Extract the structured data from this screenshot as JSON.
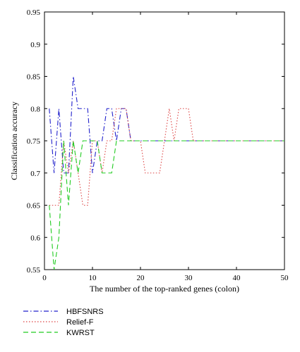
{
  "chart_data": {
    "type": "line",
    "xlabel": "The number of the top-ranked genes (colon)",
    "ylabel": "Classification accuracy",
    "xlim": [
      0,
      50
    ],
    "ylim": [
      0.55,
      0.95
    ],
    "x_ticks": [
      0,
      10,
      20,
      30,
      40,
      50
    ],
    "y_ticks": [
      0.55,
      0.6,
      0.65,
      0.7,
      0.75,
      0.8,
      0.85,
      0.9,
      0.95
    ],
    "grid": false,
    "legend_position": "below",
    "series": [
      {
        "name": "HBFSNRS",
        "color": "#2222cc",
        "style": "dash-dot",
        "x": [
          1,
          2,
          3,
          4,
          5,
          6,
          7,
          8,
          9,
          10,
          11,
          12,
          13,
          14,
          15,
          16,
          17,
          18,
          19,
          20,
          21,
          22,
          23,
          24,
          25,
          26,
          27,
          28,
          29,
          30,
          31,
          32,
          33,
          34,
          35,
          36,
          37,
          38,
          39,
          40,
          41,
          42,
          43,
          44,
          45,
          46,
          47,
          48,
          49,
          50
        ],
        "y": [
          0.8,
          0.7,
          0.8,
          0.7,
          0.7,
          0.85,
          0.8,
          0.8,
          0.8,
          0.7,
          0.75,
          0.75,
          0.8,
          0.8,
          0.75,
          0.8,
          0.8,
          0.75,
          0.75,
          0.75,
          0.75,
          0.75,
          0.75,
          0.75,
          0.75,
          0.75,
          0.75,
          0.75,
          0.75,
          0.75,
          0.75,
          0.75,
          0.75,
          0.75,
          0.75,
          0.75,
          0.75,
          0.75,
          0.75,
          0.75,
          0.75,
          0.75,
          0.75,
          0.75,
          0.75,
          0.75,
          0.75,
          0.75,
          0.75,
          0.75
        ]
      },
      {
        "name": "Relief-F",
        "color": "#dd4444",
        "style": "dotted",
        "x": [
          1,
          2,
          3,
          4,
          5,
          6,
          7,
          8,
          9,
          10,
          11,
          12,
          13,
          14,
          15,
          16,
          17,
          18,
          19,
          20,
          21,
          22,
          23,
          24,
          25,
          26,
          27,
          28,
          29,
          30,
          31,
          32,
          33,
          34,
          35,
          36,
          37,
          38,
          39,
          40,
          41,
          42,
          43,
          44,
          45,
          46,
          47,
          48,
          49,
          50
        ],
        "y": [
          0.65,
          0.65,
          0.65,
          0.75,
          0.7,
          0.75,
          0.7,
          0.65,
          0.65,
          0.75,
          0.75,
          0.7,
          0.75,
          0.75,
          0.8,
          0.8,
          0.8,
          0.75,
          0.75,
          0.75,
          0.7,
          0.7,
          0.7,
          0.7,
          0.75,
          0.8,
          0.75,
          0.8,
          0.8,
          0.8,
          0.75,
          0.75,
          0.75,
          0.75,
          0.75,
          0.75,
          0.75,
          0.75,
          0.75,
          0.75,
          0.75,
          0.75,
          0.75,
          0.75,
          0.75,
          0.75,
          0.75,
          0.75,
          0.75,
          0.75
        ]
      },
      {
        "name": "KWRST",
        "color": "#22cc22",
        "style": "dashed",
        "x": [
          1,
          2,
          3,
          4,
          5,
          6,
          7,
          8,
          9,
          10,
          11,
          12,
          13,
          14,
          15,
          16,
          17,
          18,
          19,
          20,
          21,
          22,
          23,
          24,
          25,
          26,
          27,
          28,
          29,
          30,
          31,
          32,
          33,
          34,
          35,
          36,
          37,
          38,
          39,
          40,
          41,
          42,
          43,
          44,
          45,
          46,
          47,
          48,
          49,
          50
        ],
        "y": [
          0.65,
          0.55,
          0.6,
          0.75,
          0.65,
          0.75,
          0.7,
          0.75,
          0.75,
          0.75,
          0.75,
          0.7,
          0.7,
          0.7,
          0.75,
          0.75,
          0.75,
          0.75,
          0.75,
          0.75,
          0.75,
          0.75,
          0.75,
          0.75,
          0.75,
          0.75,
          0.75,
          0.75,
          0.75,
          0.75,
          0.75,
          0.75,
          0.75,
          0.75,
          0.75,
          0.75,
          0.75,
          0.75,
          0.75,
          0.75,
          0.75,
          0.75,
          0.75,
          0.75,
          0.75,
          0.75,
          0.75,
          0.75,
          0.75,
          0.75
        ]
      }
    ]
  }
}
